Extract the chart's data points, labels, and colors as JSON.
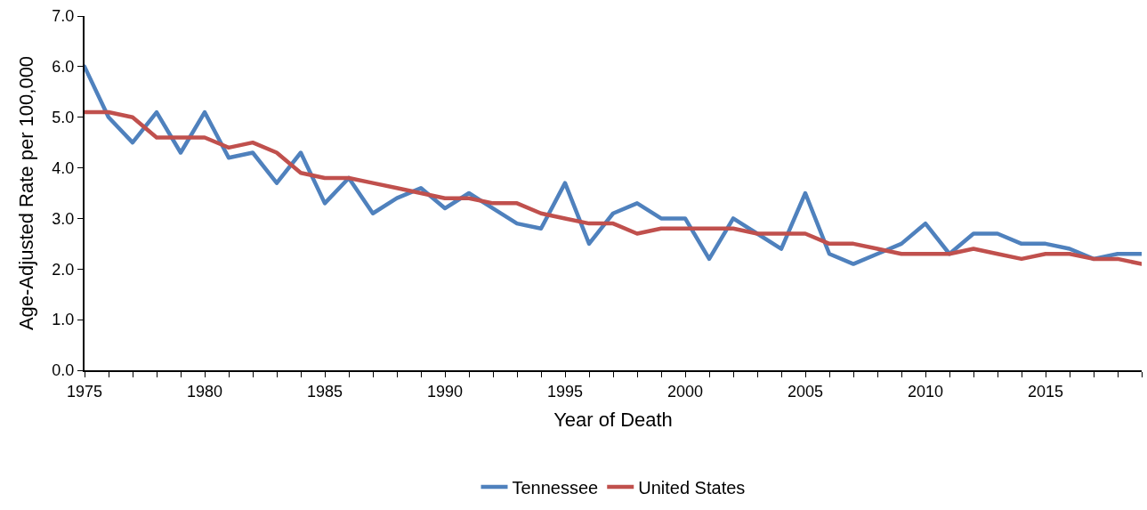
{
  "chart_data": {
    "type": "line",
    "xlabel": "Year of Death",
    "ylabel": "Age-Adjusted Rate per 100,000",
    "x": [
      1975,
      1976,
      1977,
      1978,
      1979,
      1980,
      1981,
      1982,
      1983,
      1984,
      1985,
      1986,
      1987,
      1988,
      1989,
      1990,
      1991,
      1992,
      1993,
      1994,
      1995,
      1996,
      1997,
      1998,
      1999,
      2000,
      2001,
      2002,
      2003,
      2004,
      2005,
      2006,
      2007,
      2008,
      2009,
      2010,
      2011,
      2012,
      2013,
      2014,
      2015,
      2016,
      2017,
      2018,
      2019
    ],
    "series": [
      {
        "name": "Tennessee",
        "color": "#4f81bd",
        "values": [
          6.0,
          5.0,
          4.5,
          5.1,
          4.3,
          5.1,
          4.2,
          4.3,
          3.7,
          4.3,
          3.3,
          3.8,
          3.1,
          3.4,
          3.6,
          3.2,
          3.5,
          3.2,
          2.9,
          2.8,
          3.7,
          2.5,
          3.1,
          3.3,
          3.0,
          3.0,
          2.2,
          3.0,
          2.7,
          2.4,
          3.5,
          2.3,
          2.1,
          2.3,
          2.5,
          2.9,
          2.3,
          2.7,
          2.7,
          2.5,
          2.5,
          2.4,
          2.2,
          2.3,
          2.3
        ]
      },
      {
        "name": "United States",
        "color": "#c0504d",
        "values": [
          5.1,
          5.1,
          5.0,
          4.6,
          4.6,
          4.6,
          4.4,
          4.5,
          4.3,
          3.9,
          3.8,
          3.8,
          3.7,
          3.6,
          3.5,
          3.4,
          3.4,
          3.3,
          3.3,
          3.1,
          3.0,
          2.9,
          2.9,
          2.7,
          2.8,
          2.8,
          2.8,
          2.8,
          2.7,
          2.7,
          2.7,
          2.5,
          2.5,
          2.4,
          2.3,
          2.3,
          2.3,
          2.4,
          2.3,
          2.2,
          2.3,
          2.3,
          2.2,
          2.2,
          2.1
        ]
      }
    ],
    "xlim": [
      1975,
      2019
    ],
    "xticks": [
      1975,
      {
        "value": 1976,
        "label": null
      },
      {
        "value": 1977,
        "label": null
      },
      {
        "value": 1978,
        "label": null
      },
      {
        "value": 1979,
        "label": null
      },
      1980,
      {
        "value": 1981,
        "label": null
      },
      {
        "value": 1982,
        "label": null
      },
      {
        "value": 1983,
        "label": null
      },
      {
        "value": 1984,
        "label": null
      },
      1985,
      {
        "value": 1986,
        "label": null
      },
      {
        "value": 1987,
        "label": null
      },
      {
        "value": 1988,
        "label": null
      },
      {
        "value": 1989,
        "label": null
      },
      1990,
      {
        "value": 1991,
        "label": null
      },
      {
        "value": 1992,
        "label": null
      },
      {
        "value": 1993,
        "label": null
      },
      {
        "value": 1994,
        "label": null
      },
      1995,
      {
        "value": 1996,
        "label": null
      },
      {
        "value": 1997,
        "label": null
      },
      {
        "value": 1998,
        "label": null
      },
      {
        "value": 1999,
        "label": null
      },
      2000,
      {
        "value": 2001,
        "label": null
      },
      {
        "value": 2002,
        "label": null
      },
      {
        "value": 2003,
        "label": null
      },
      {
        "value": 2004,
        "label": null
      },
      2005,
      {
        "value": 2006,
        "label": null
      },
      {
        "value": 2007,
        "label": null
      },
      {
        "value": 2008,
        "label": null
      },
      {
        "value": 2009,
        "label": null
      },
      2010,
      {
        "value": 2011,
        "label": null
      },
      {
        "value": 2012,
        "label": null
      },
      {
        "value": 2013,
        "label": null
      },
      {
        "value": 2014,
        "label": null
      },
      2015,
      {
        "value": 2016,
        "label": null
      },
      {
        "value": 2017,
        "label": null
      },
      {
        "value": 2018,
        "label": null
      },
      {
        "value": 2019,
        "label": null
      }
    ],
    "ylim": [
      0,
      7
    ],
    "yticks": [
      {
        "value": 0,
        "label": "0.0"
      },
      {
        "value": 1,
        "label": "1.0"
      },
      {
        "value": 2,
        "label": "2.0"
      },
      {
        "value": 3,
        "label": "3.0"
      },
      {
        "value": 4,
        "label": "4.0"
      },
      {
        "value": 5,
        "label": "5.0"
      },
      {
        "value": 6,
        "label": "6.0"
      },
      {
        "value": 7,
        "label": "7.0"
      }
    ],
    "legend": "bottom",
    "marker": "none",
    "line_style": "solid"
  }
}
